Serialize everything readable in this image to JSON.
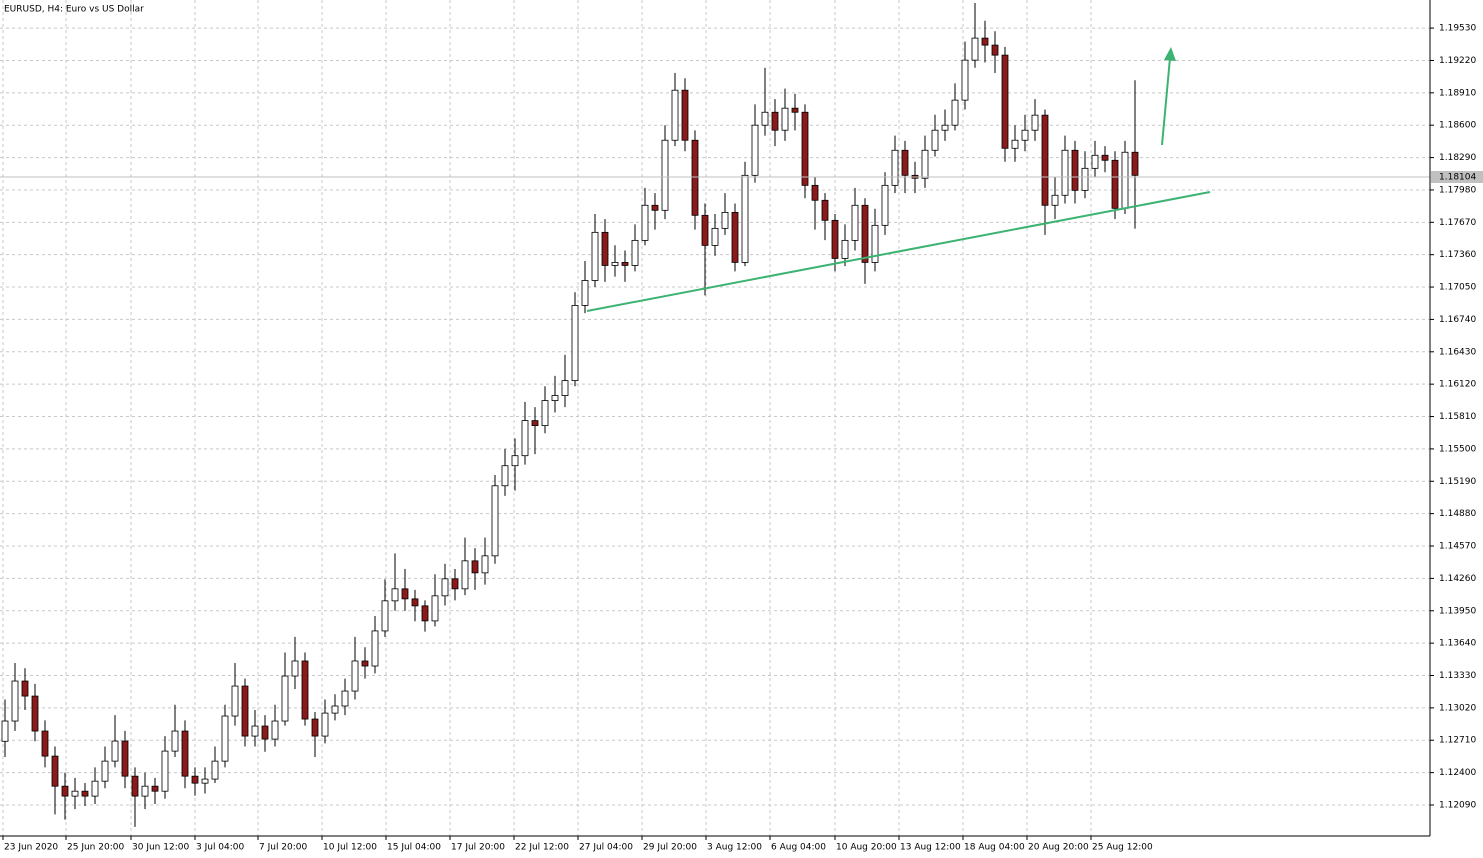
{
  "chart_data": {
    "type": "candlestick",
    "title": "EURUSD, H4:  Euro vs US Dollar",
    "x": [
      0,
      1,
      2,
      3,
      4,
      5,
      6,
      7,
      8,
      9,
      10,
      11,
      12,
      13,
      14,
      15,
      16,
      17,
      18,
      19,
      20,
      21,
      22,
      23,
      24,
      25,
      26,
      27,
      28,
      29,
      30,
      31,
      32,
      33,
      34,
      35,
      36,
      37,
      38,
      39,
      40,
      41,
      42,
      43,
      44,
      45,
      46,
      47,
      48,
      49,
      50,
      51,
      52,
      53,
      54,
      55,
      56,
      57,
      58,
      59,
      60,
      61,
      62,
      63,
      64,
      65,
      66,
      67,
      68,
      69,
      70,
      71,
      72,
      73,
      74,
      75,
      76,
      77,
      78,
      79,
      80,
      81,
      82,
      83,
      84,
      85,
      86,
      87,
      88,
      89,
      90,
      91,
      92,
      93,
      94,
      95,
      96,
      97,
      98,
      99,
      100,
      101,
      102,
      103,
      104,
      105,
      106,
      107,
      108,
      109,
      110,
      111,
      112,
      113
    ],
    "open": [
      1.127,
      1.12894,
      1.13277,
      1.13133,
      1.12798,
      1.12558,
      1.1227,
      1.12175,
      1.12222,
      1.12175,
      1.12318,
      1.1251,
      1.12702,
      1.12366,
      1.12175,
      1.1227,
      1.12222,
      1.12606,
      1.12798,
      1.12366,
      1.12299,
      1.12338,
      1.1251,
      1.12942,
      1.13229,
      1.1275,
      1.12846,
      1.12721,
      1.12894,
      1.13325,
      1.13469,
      1.12913,
      1.1275,
      1.1297,
      1.13038,
      1.13181,
      1.13469,
      1.13421,
      1.13757,
      1.14045,
      1.1416,
      1.14064,
      1.13997,
      1.13853,
      1.14093,
      1.14256,
      1.1416,
      1.14428,
      1.14313,
      1.14476,
      1.15147,
      1.15339,
      1.15435,
      1.15771,
      1.15723,
      1.15963,
      1.16011,
      1.16154,
      1.16874,
      1.17113,
      1.17574,
      1.17257,
      1.17286,
      1.17257,
      1.17497,
      1.17833,
      1.17785,
      1.18456,
      1.18935,
      1.18456,
      1.17737,
      1.17449,
      1.17612,
      1.17765,
      1.17286,
      1.1812,
      1.186,
      1.18724,
      1.18552,
      1.18763,
      1.18724,
      1.18024,
      1.17881,
      1.17689,
      1.17324,
      1.17497,
      1.17833,
      1.17286,
      1.17641,
      1.18024,
      1.1836,
      1.1812,
      1.18092,
      1.1836,
      1.18552,
      1.186,
      1.1884,
      1.19223,
      1.19434,
      1.19367,
      1.19271,
      1.18379,
      1.18456,
      1.18552,
      1.18696,
      1.17833,
      1.17929,
      1.1836,
      1.17976,
      1.18187,
      1.18312,
      1.18264,
      1.17804,
      1.18341
    ],
    "high": [
      1.131,
      1.1345,
      1.134,
      1.1325,
      1.129,
      1.1265,
      1.124,
      1.1235,
      1.123,
      1.1245,
      1.1265,
      1.1295,
      1.128,
      1.1245,
      1.124,
      1.1235,
      1.1275,
      1.1305,
      1.129,
      1.1245,
      1.1245,
      1.1265,
      1.1305,
      1.1345,
      1.133,
      1.13,
      1.1295,
      1.1305,
      1.1355,
      1.137,
      1.1355,
      1.1298,
      1.131,
      1.1315,
      1.133,
      1.137,
      1.136,
      1.139,
      1.1425,
      1.145,
      1.1435,
      1.1415,
      1.1405,
      1.143,
      1.144,
      1.1435,
      1.1465,
      1.1455,
      1.1465,
      1.1525,
      1.155,
      1.156,
      1.1595,
      1.159,
      1.161,
      1.162,
      1.164,
      1.17,
      1.173,
      1.1775,
      1.177,
      1.1745,
      1.174,
      1.1765,
      1.18,
      1.1795,
      1.186,
      1.191,
      1.1905,
      1.1855,
      1.1785,
      1.1775,
      1.1795,
      1.1785,
      1.1825,
      1.188,
      1.1915,
      1.1885,
      1.1895,
      1.189,
      1.188,
      1.181,
      1.1795,
      1.1775,
      1.1765,
      1.18,
      1.179,
      1.178,
      1.1815,
      1.185,
      1.1845,
      1.1825,
      1.185,
      1.187,
      1.1875,
      1.19,
      1.194,
      1.1977,
      1.196,
      1.195,
      1.1935,
      1.186,
      1.187,
      1.1885,
      1.1875,
      1.181,
      1.185,
      1.1845,
      1.1835,
      1.1845,
      1.184,
      1.1835,
      1.1845,
      1.1903
    ],
    "low": [
      1.1255,
      1.128,
      1.13,
      1.127,
      1.1245,
      1.12,
      1.1195,
      1.1205,
      1.1208,
      1.121,
      1.1225,
      1.1245,
      1.1225,
      1.1188,
      1.1205,
      1.121,
      1.1215,
      1.1255,
      1.1225,
      1.1218,
      1.122,
      1.123,
      1.1245,
      1.1285,
      1.1265,
      1.1265,
      1.126,
      1.1265,
      1.1285,
      1.132,
      1.1285,
      1.1255,
      1.1268,
      1.129,
      1.1295,
      1.131,
      1.133,
      1.1335,
      1.137,
      1.1395,
      1.1395,
      1.1385,
      1.1375,
      1.138,
      1.14,
      1.1405,
      1.141,
      1.1415,
      1.142,
      1.144,
      1.1505,
      1.151,
      1.1535,
      1.1545,
      1.1565,
      1.1585,
      1.159,
      1.161,
      1.168,
      1.1705,
      1.171,
      1.1715,
      1.171,
      1.172,
      1.1745,
      1.176,
      1.177,
      1.184,
      1.1835,
      1.176,
      1.1697,
      1.1735,
      1.1755,
      1.172,
      1.1725,
      1.1805,
      1.185,
      1.184,
      1.1845,
      1.1855,
      1.179,
      1.176,
      1.175,
      1.172,
      1.1725,
      1.174,
      1.1708,
      1.172,
      1.1755,
      1.1795,
      1.1795,
      1.1795,
      1.18,
      1.183,
      1.1845,
      1.1855,
      1.1875,
      1.1915,
      1.192,
      1.191,
      1.1825,
      1.1825,
      1.1835,
      1.1845,
      1.1755,
      1.177,
      1.1785,
      1.1785,
      1.179,
      1.181,
      1.1815,
      1.177,
      1.1775,
      1.1761
    ],
    "close": [
      1.12894,
      1.13277,
      1.13133,
      1.12798,
      1.12558,
      1.1227,
      1.12175,
      1.12222,
      1.12175,
      1.12318,
      1.1251,
      1.12702,
      1.12366,
      1.12175,
      1.1227,
      1.12222,
      1.12606,
      1.12798,
      1.12366,
      1.12299,
      1.12338,
      1.1251,
      1.12942,
      1.13229,
      1.1275,
      1.12846,
      1.12721,
      1.12894,
      1.13325,
      1.13469,
      1.12913,
      1.1275,
      1.1297,
      1.13038,
      1.13181,
      1.13469,
      1.13421,
      1.13757,
      1.14045,
      1.1416,
      1.14064,
      1.13997,
      1.13853,
      1.14093,
      1.14256,
      1.1416,
      1.14428,
      1.14313,
      1.14476,
      1.15147,
      1.15339,
      1.15435,
      1.15771,
      1.15723,
      1.15963,
      1.16011,
      1.16154,
      1.16874,
      1.17113,
      1.17574,
      1.17257,
      1.17286,
      1.17257,
      1.17497,
      1.17833,
      1.17785,
      1.18456,
      1.18935,
      1.18456,
      1.17737,
      1.17449,
      1.17612,
      1.17765,
      1.17286,
      1.1812,
      1.186,
      1.18724,
      1.18552,
      1.18763,
      1.18724,
      1.18024,
      1.17881,
      1.17689,
      1.17324,
      1.17497,
      1.17833,
      1.17286,
      1.17641,
      1.18024,
      1.1836,
      1.1812,
      1.18092,
      1.1836,
      1.18552,
      1.186,
      1.1884,
      1.19223,
      1.19434,
      1.19367,
      1.19271,
      1.18379,
      1.18456,
      1.18552,
      1.18696,
      1.17833,
      1.17929,
      1.1836,
      1.17976,
      1.18187,
      1.18312,
      1.18264,
      1.17804,
      1.18341,
      1.1812
    ],
    "up_color": "#ffffff",
    "down_color": "#8b1a1a",
    "grid": true,
    "current_price": 1.18104,
    "xlim": [
      -0.5,
      142.5
    ],
    "ylim": [
      1.11793,
      1.19799
    ],
    "xticks": [
      {
        "value": -0.2,
        "label": "23 Jun 2020"
      },
      {
        "value": 6.1,
        "label": "25 Jun 20:00"
      },
      {
        "value": 12.6,
        "label": "30 Jun 12:00"
      },
      {
        "value": 19,
        "label": "3 Jul 04:00"
      },
      {
        "value": 25.3,
        "label": "7 Jul 20:00"
      },
      {
        "value": 31.7,
        "label": "10 Jul 12:00"
      },
      {
        "value": 38.1,
        "label": "15 Jul 04:00"
      },
      {
        "value": 44.5,
        "label": "17 Jul 20:00"
      },
      {
        "value": 50.9,
        "label": "22 Jul 12:00"
      },
      {
        "value": 57.3,
        "label": "27 Jul 04:00"
      },
      {
        "value": 63.7,
        "label": "29 Jul 20:00"
      },
      {
        "value": 70.1,
        "label": "3 Aug 12:00"
      },
      {
        "value": 76.5,
        "label": "6 Aug 04:00"
      },
      {
        "value": 83,
        "label": "10 Aug 20:00"
      },
      {
        "value": 89.4,
        "label": "13 Aug 12:00"
      },
      {
        "value": 95.8,
        "label": "18 Aug 04:00"
      },
      {
        "value": 102.2,
        "label": "20 Aug 20:00"
      },
      {
        "value": 108.6,
        "label": "25 Aug 12:00"
      }
    ],
    "yticks": [
      {
        "value": 1.1209,
        "label": "1.12090"
      },
      {
        "value": 1.124,
        "label": "1.12400"
      },
      {
        "value": 1.1271,
        "label": "1.12710"
      },
      {
        "value": 1.1302,
        "label": "1.13020"
      },
      {
        "value": 1.1333,
        "label": "1.13330"
      },
      {
        "value": 1.1364,
        "label": "1.13640"
      },
      {
        "value": 1.1395,
        "label": "1.13950"
      },
      {
        "value": 1.1426,
        "label": "1.14260"
      },
      {
        "value": 1.1457,
        "label": "1.14570"
      },
      {
        "value": 1.1488,
        "label": "1.14880"
      },
      {
        "value": 1.1519,
        "label": "1.15190"
      },
      {
        "value": 1.155,
        "label": "1.15500"
      },
      {
        "value": 1.1581,
        "label": "1.15810"
      },
      {
        "value": 1.1612,
        "label": "1.16120"
      },
      {
        "value": 1.1643,
        "label": "1.16430"
      },
      {
        "value": 1.1674,
        "label": "1.16740"
      },
      {
        "value": 1.1705,
        "label": "1.17050"
      },
      {
        "value": 1.1736,
        "label": "1.17360"
      },
      {
        "value": 1.1767,
        "label": "1.17670"
      },
      {
        "value": 1.1798,
        "label": "1.17980"
      },
      {
        "value": 1.1829,
        "label": "1.18290"
      },
      {
        "value": 1.186,
        "label": "1.18600"
      },
      {
        "value": 1.1891,
        "label": "1.18910"
      },
      {
        "value": 1.1922,
        "label": "1.19220"
      },
      {
        "value": 1.1953,
        "label": "1.19530"
      }
    ]
  }
}
